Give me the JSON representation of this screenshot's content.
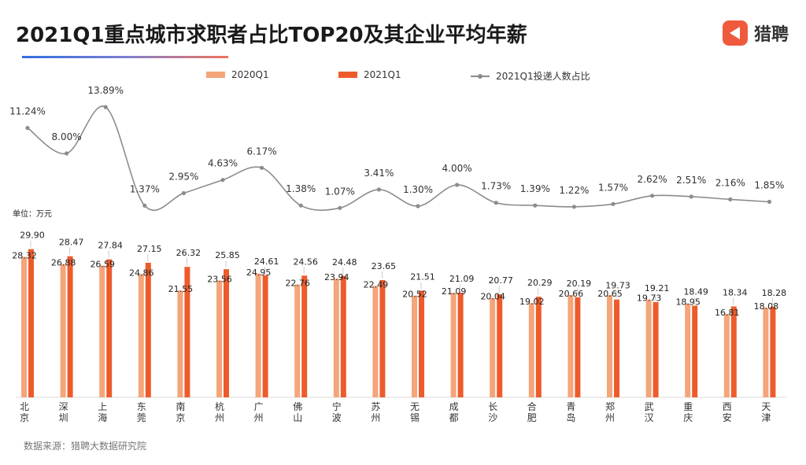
{
  "header": {
    "title": "2021Q1重点城市求职者占比TOP20及其企业平均年薪",
    "brand": "猎聘"
  },
  "unit_label": "单位：万元",
  "source": "数据来源：猎聘大数据研究院",
  "colors": {
    "bar_2020": "#f4a57a",
    "bar_2021": "#ee5b2b",
    "line": "#8c8c8c",
    "brand": "#ef5a3c"
  },
  "chart_data": {
    "type": "bar",
    "categories": [
      "北京",
      "深圳",
      "上海",
      "东莞",
      "南京",
      "杭州",
      "广州",
      "佛山",
      "宁波",
      "苏州",
      "无锡",
      "成都",
      "长沙",
      "合肥",
      "青岛",
      "郑州",
      "武汉",
      "重庆",
      "西安",
      "天津"
    ],
    "series": [
      {
        "name": "2020Q1",
        "values": [
          28.32,
          26.88,
          26.59,
          24.86,
          21.55,
          23.56,
          24.95,
          22.76,
          23.94,
          22.49,
          20.52,
          21.09,
          20.04,
          19.02,
          20.66,
          20.65,
          19.73,
          18.95,
          16.81,
          18.08
        ]
      },
      {
        "name": "2021Q1",
        "values": [
          29.9,
          28.47,
          27.84,
          27.15,
          26.32,
          25.85,
          24.61,
          24.56,
          24.48,
          23.65,
          21.51,
          21.09,
          20.77,
          20.29,
          20.19,
          19.73,
          19.21,
          18.49,
          18.34,
          18.28
        ]
      }
    ],
    "line_series": {
      "name": "2021Q1投递人数占比",
      "type": "line",
      "values": [
        11.24,
        8.0,
        13.89,
        1.37,
        2.95,
        4.63,
        6.17,
        1.38,
        1.07,
        3.41,
        1.3,
        4.0,
        1.73,
        1.39,
        1.22,
        1.57,
        2.62,
        2.51,
        2.16,
        1.85
      ],
      "labels": [
        "11.24%",
        "8.00%",
        "13.89%",
        "1.37%",
        "2.95%",
        "4.63%",
        "6.17%",
        "1.38%",
        "1.07%",
        "3.41%",
        "1.30%",
        "4.00%",
        "1.73%",
        "1.39%",
        "1.22%",
        "1.57%",
        "2.62%",
        "2.51%",
        "2.16%",
        "1.85%"
      ]
    },
    "value_labels_2020": [
      "28.32",
      "26.88",
      "26.59",
      "24.86",
      "21.55",
      "23.56",
      "24.95",
      "22.76",
      "23.94",
      "22.49",
      "20.52",
      "21.09",
      "20.04",
      "19.02",
      "20.66",
      "20.65",
      "19.73",
      "18.95",
      "16.81",
      "18.08"
    ],
    "value_labels_2021": [
      "29.90",
      "28.47",
      "27.84",
      "27.15",
      "26.32",
      "25.85",
      "24.61",
      "24.56",
      "24.48",
      "23.65",
      "21.51",
      "21.09",
      "20.77",
      "20.29",
      "20.19",
      "19.73",
      "19.21",
      "18.49",
      "18.34",
      "18.28"
    ],
    "legend_position": "top",
    "grid": false
  }
}
